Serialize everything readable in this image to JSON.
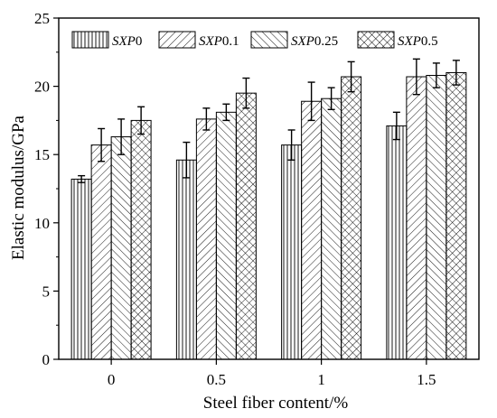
{
  "chart_data": {
    "type": "bar",
    "xlabel": "Steel fiber content/%",
    "ylabel": "Elastic modulus/GPa",
    "categories": [
      "0",
      "0.5",
      "1",
      "1.5"
    ],
    "ylim": [
      0,
      25
    ],
    "yticks": [
      0,
      5,
      10,
      15,
      20,
      25
    ],
    "grid": false,
    "legend_position": "top",
    "series": [
      {
        "name_main": "SXP",
        "name_suffix": "0",
        "pattern": "vertical-lines",
        "values": [
          13.2,
          14.6,
          15.7,
          17.1
        ],
        "errors": [
          0.25,
          1.3,
          1.1,
          1.0
        ]
      },
      {
        "name_main": "SXP",
        "name_suffix": "0.1",
        "pattern": "forward-diagonal",
        "values": [
          15.7,
          17.6,
          18.9,
          20.7
        ],
        "errors": [
          1.2,
          0.8,
          1.4,
          1.3
        ]
      },
      {
        "name_main": "SXP",
        "name_suffix": "0.25",
        "pattern": "back-diagonal",
        "values": [
          16.3,
          18.1,
          19.1,
          20.8
        ],
        "errors": [
          1.3,
          0.6,
          0.8,
          0.9
        ]
      },
      {
        "name_main": "SXP",
        "name_suffix": "0.5",
        "pattern": "crosshatch",
        "values": [
          17.5,
          19.5,
          20.7,
          21.0
        ],
        "errors": [
          1.0,
          1.1,
          1.1,
          0.9
        ]
      }
    ]
  }
}
